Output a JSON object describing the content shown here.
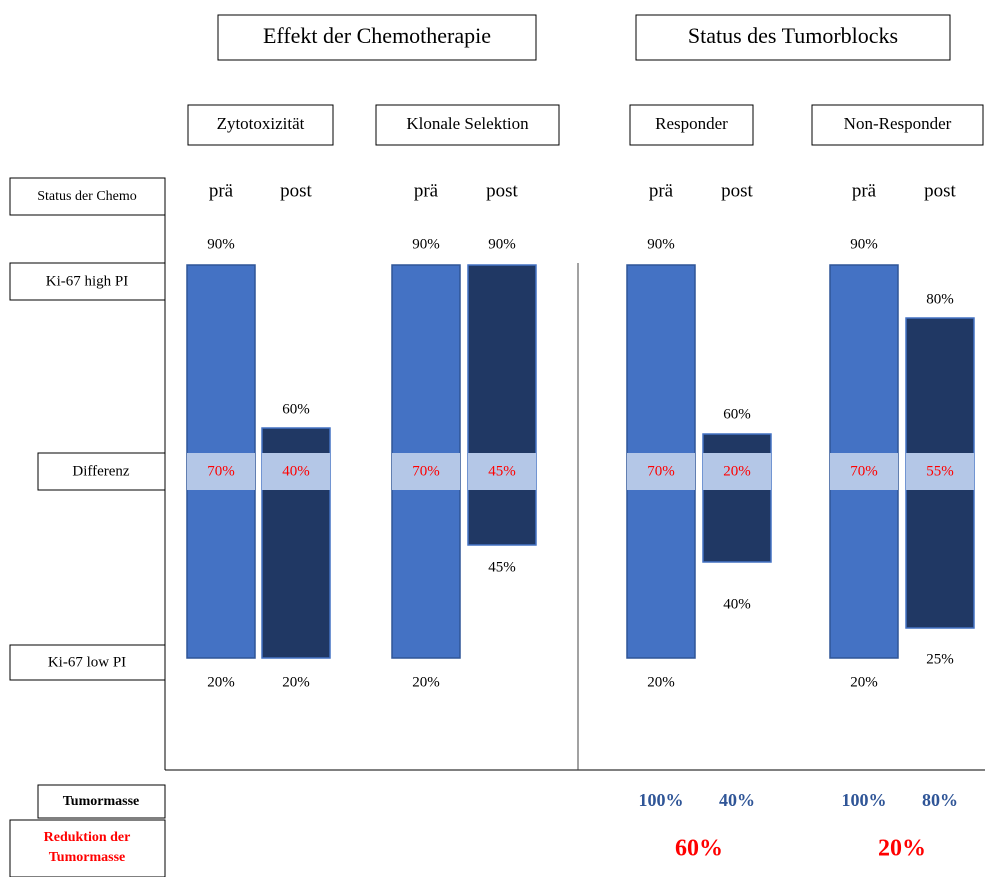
{
  "headers": [
    "Effekt der Chemotherapie",
    "Status des Tumorblocks"
  ],
  "row_labels": {
    "status": "Status der Chemo",
    "high": "Ki-67 high PI",
    "diff": "Differenz",
    "low": "Ki-67 low PI",
    "mass": "Tumormasse",
    "reduction": [
      "Reduktion der",
      "Tumormasse"
    ]
  },
  "groups": [
    {
      "label": "Zytotoxizität",
      "columns": [
        {
          "phase": "prä",
          "top": "90%",
          "diff": "70%",
          "bottom": "20%"
        },
        {
          "phase": "post",
          "top": "60%",
          "diff": "40%",
          "bottom": "20%"
        }
      ]
    },
    {
      "label": "Klonale Selektion",
      "columns": [
        {
          "phase": "prä",
          "top": "90%",
          "diff": "70%",
          "bottom": "20%"
        },
        {
          "phase": "post",
          "top": "90%",
          "diff": "45%",
          "bottom": "45%"
        }
      ]
    },
    {
      "label": "Responder",
      "columns": [
        {
          "phase": "prä",
          "top": "90%",
          "diff": "70%",
          "bottom": "20%"
        },
        {
          "phase": "post",
          "top": "60%",
          "diff": "20%",
          "bottom": "40%"
        }
      ],
      "mass": [
        "100%",
        "40%"
      ],
      "reduction": "60%"
    },
    {
      "label": "Non-Responder",
      "columns": [
        {
          "phase": "prä",
          "top": "90%",
          "diff": "70%",
          "bottom": "20%"
        },
        {
          "phase": "post",
          "top": "80%",
          "diff": "55%",
          "bottom": "25%"
        }
      ],
      "mass": [
        "100%",
        "80%"
      ],
      "reduction": "20%"
    }
  ]
}
